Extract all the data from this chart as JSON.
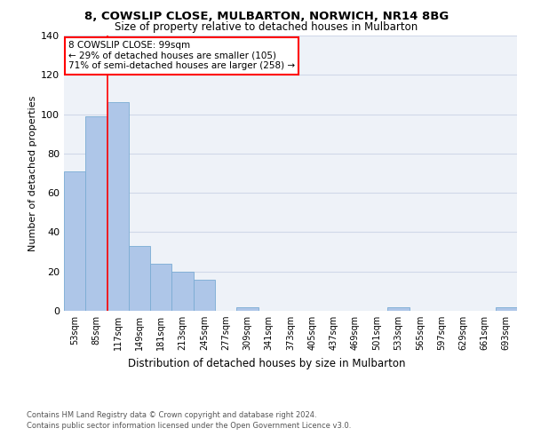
{
  "title1": "8, COWSLIP CLOSE, MULBARTON, NORWICH, NR14 8BG",
  "title2": "Size of property relative to detached houses in Mulbarton",
  "xlabel": "Distribution of detached houses by size in Mulbarton",
  "ylabel": "Number of detached properties",
  "categories": [
    "53sqm",
    "85sqm",
    "117sqm",
    "149sqm",
    "181sqm",
    "213sqm",
    "245sqm",
    "277sqm",
    "309sqm",
    "341sqm",
    "373sqm",
    "405sqm",
    "437sqm",
    "469sqm",
    "501sqm",
    "533sqm",
    "565sqm",
    "597sqm",
    "629sqm",
    "661sqm",
    "693sqm"
  ],
  "values": [
    71,
    99,
    106,
    33,
    24,
    20,
    16,
    0,
    2,
    0,
    0,
    0,
    0,
    0,
    0,
    2,
    0,
    0,
    0,
    0,
    2
  ],
  "bar_color": "#aec6e8",
  "bar_edge_color": "#7aacd4",
  "grid_color": "#d0d8e8",
  "background_color": "#eef2f8",
  "vline_x": 1.5,
  "annotation_lines": [
    "8 COWSLIP CLOSE: 99sqm",
    "← 29% of detached houses are smaller (105)",
    "71% of semi-detached houses are larger (258) →"
  ],
  "ylim": [
    0,
    140
  ],
  "yticks": [
    0,
    20,
    40,
    60,
    80,
    100,
    120,
    140
  ],
  "footer1": "Contains HM Land Registry data © Crown copyright and database right 2024.",
  "footer2": "Contains public sector information licensed under the Open Government Licence v3.0."
}
